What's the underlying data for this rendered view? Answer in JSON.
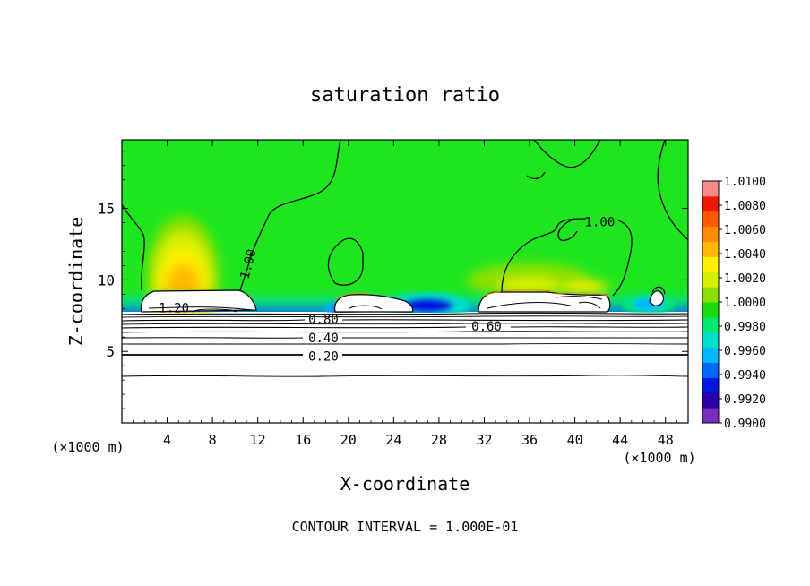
{
  "chart_data": {
    "type": "heatmap",
    "title": "saturation ratio",
    "xlabel": "X-coordinate",
    "ylabel": "Z-coordinate",
    "x_unit": "(×1000 m)",
    "y_unit": "(×1000 m)",
    "xlim": [
      0,
      50
    ],
    "ylim": [
      0,
      19.8
    ],
    "xticks": [
      4,
      8,
      12,
      16,
      20,
      24,
      28,
      32,
      36,
      40,
      44,
      48
    ],
    "yticks": [
      5,
      10,
      15
    ],
    "footer": "CONTOUR INTERVAL = 1.000E-01",
    "colorbar": {
      "min": 0.99,
      "max": 1.01,
      "ticks": [
        "1.0100",
        "1.0080",
        "1.0060",
        "1.0040",
        "1.0020",
        "1.0000",
        "0.9980",
        "0.9960",
        "0.9940",
        "0.9920",
        "0.9900"
      ],
      "colors": [
        "#7a2cbf",
        "#2b00a8",
        "#0018e0",
        "#0068ff",
        "#00b8ff",
        "#00ddc8",
        "#00e870",
        "#1bdc0a",
        "#8be000",
        "#d8f000",
        "#ffef00",
        "#ffba00",
        "#ff8a00",
        "#ff5a00",
        "#f21800",
        "#f88a8a"
      ]
    },
    "background_color": "#1ee61e",
    "contour_labels": [
      {
        "text": "1.00",
        "x": 11.2,
        "y": 11.1,
        "rotate": -75
      },
      {
        "text": "1.00",
        "x": 42.2,
        "y": 14.0,
        "rotate": 0
      },
      {
        "text": "1.20",
        "x": 4.6,
        "y": 8.0,
        "rotate": 0
      },
      {
        "text": "0.80",
        "x": 17.8,
        "y": 7.2,
        "rotate": 0
      },
      {
        "text": "0.60",
        "x": 32.2,
        "y": 6.7,
        "rotate": 0
      },
      {
        "text": "0.40",
        "x": 17.8,
        "y": 5.9,
        "rotate": 0
      },
      {
        "text": "0.20",
        "x": 17.8,
        "y": 4.6,
        "rotate": 0
      }
    ],
    "hot_spots": [
      {
        "x": 5.4,
        "y": 10.2,
        "rx": 3.2,
        "ry": 4.3,
        "level": 1.006
      },
      {
        "x": 36.0,
        "y": 9.9,
        "rx": 5.5,
        "ry": 1.3,
        "level": 1.002
      },
      {
        "x": 40.8,
        "y": 9.4,
        "rx": 2.4,
        "ry": 0.7,
        "level": 1.004
      }
    ],
    "cold_spots": [
      {
        "x": 27.0,
        "y": 8.2,
        "rx": 3.8,
        "ry": 0.9,
        "level": 0.9935
      },
      {
        "x": 19.5,
        "y": 8.0,
        "rx": 1.6,
        "ry": 0.5,
        "level": 0.992
      },
      {
        "x": 46.5,
        "y": 8.3,
        "rx": 2.4,
        "ry": 0.7,
        "level": 0.995
      }
    ]
  }
}
